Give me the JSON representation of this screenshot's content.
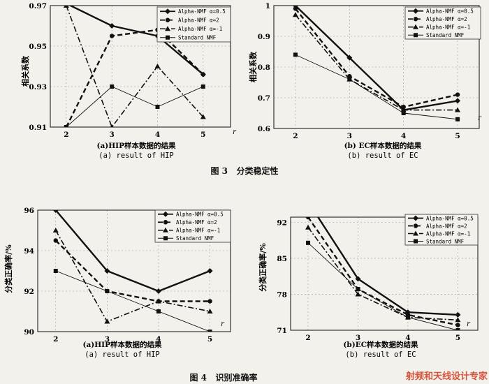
{
  "fig3_caption": "图 3   分类稳定性",
  "fig4_caption": "图 4   识别准确率",
  "watermark": {
    "brand": "射频和天线设计专家"
  },
  "chart_data": [
    {
      "id": "fig3a",
      "type": "line",
      "caption_cn": "(a)HIP样本数据的结果",
      "caption_en": "(a)  result of HIP",
      "ylabel": "相关系数",
      "xlabel": "r",
      "x": [
        2,
        3,
        4,
        5
      ],
      "xlim": [
        1.65,
        5.6
      ],
      "ylim": [
        0.91,
        0.97
      ],
      "yticks": [
        0.91,
        0.93,
        0.95,
        0.97
      ],
      "xticks": [
        2,
        3,
        4,
        5
      ],
      "legend_position": "top-right",
      "series": [
        {
          "name": "Alpha-NMF α=0.5",
          "values": [
            0.971,
            0.96,
            0.955,
            0.936
          ],
          "style": "solid-thick",
          "marker": "diamond"
        },
        {
          "name": "Alpha-NMF α=2",
          "values": [
            0.91,
            0.955,
            0.958,
            0.936
          ],
          "style": "dashed-thick",
          "marker": "circle"
        },
        {
          "name": "Alpha-NMF α=-1",
          "values": [
            0.97,
            0.91,
            0.94,
            0.915
          ],
          "style": "dashdot",
          "marker": "triangle"
        },
        {
          "name": "Standard NMF",
          "values": [
            0.91,
            0.93,
            0.92,
            0.93
          ],
          "style": "solid-thin",
          "marker": "square"
        }
      ]
    },
    {
      "id": "fig3b",
      "type": "line",
      "caption_cn": "(b) EC样本数据的结果",
      "caption_en": "(b)  result of EC",
      "ylabel": "相关系数",
      "xlabel": "r",
      "x": [
        2,
        3,
        4,
        5
      ],
      "xlim": [
        1.6,
        5.4
      ],
      "ylim": [
        0.6,
        1.0
      ],
      "yticks": [
        0.6,
        0.7,
        0.8,
        0.9,
        1
      ],
      "xticks": [
        2,
        3,
        4,
        5
      ],
      "legend_position": "top-right",
      "series": [
        {
          "name": "Alpha-NMF α=0.5",
          "values": [
            1.0,
            0.83,
            0.66,
            0.69
          ],
          "style": "solid-thick",
          "marker": "diamond"
        },
        {
          "name": "Alpha-NMF α=2",
          "values": [
            0.99,
            0.77,
            0.67,
            0.71
          ],
          "style": "dashed-thick",
          "marker": "circle"
        },
        {
          "name": "Alpha-NMF α=-1",
          "values": [
            0.97,
            0.76,
            0.66,
            0.66
          ],
          "style": "dashdot",
          "marker": "triangle"
        },
        {
          "name": "Standard NMF",
          "values": [
            0.84,
            0.76,
            0.65,
            0.63
          ],
          "style": "solid-thin",
          "marker": "square"
        }
      ]
    },
    {
      "id": "fig4a",
      "type": "line",
      "caption_cn": "(a)HIP样本数据的结果",
      "caption_en": "(a)  result of HIP",
      "ylabel": "分类正确率/%",
      "xlabel": "r",
      "x": [
        2,
        3,
        4,
        5
      ],
      "xlim": [
        1.65,
        5.4
      ],
      "ylim": [
        90,
        96
      ],
      "yticks": [
        90,
        92,
        94,
        96
      ],
      "xticks": [
        2,
        3,
        4,
        5
      ],
      "legend_position": "top-right",
      "series": [
        {
          "name": "Alpha-NMF α=0.5",
          "values": [
            96,
            93,
            92,
            93
          ],
          "style": "solid-thick",
          "marker": "diamond"
        },
        {
          "name": "Alpha-NMF α=2",
          "values": [
            94.5,
            92,
            91.5,
            91.5
          ],
          "style": "dashed-thick",
          "marker": "circle"
        },
        {
          "name": "Alpha-NMF α=-1",
          "values": [
            95,
            90.5,
            91.5,
            91
          ],
          "style": "dashdot",
          "marker": "triangle"
        },
        {
          "name": "Standard NMF",
          "values": [
            93,
            92,
            91,
            90
          ],
          "style": "solid-thin",
          "marker": "square"
        }
      ]
    },
    {
      "id": "fig4b",
      "type": "line",
      "caption_cn": "(b)EC样本数据的结果",
      "caption_en": "(b)  result of EC",
      "ylabel": "分类正确率/%",
      "xlabel": "r",
      "x": [
        2,
        3,
        4,
        5
      ],
      "xlim": [
        1.65,
        5.4
      ],
      "ylim": [
        71,
        93
      ],
      "yticks": [
        71,
        78,
        85,
        92
      ],
      "xticks": [
        2,
        3,
        4,
        5
      ],
      "legend_position": "top-right",
      "series": [
        {
          "name": "Alpha-NMF α=0.5",
          "values": [
            96,
            81,
            74.5,
            74
          ],
          "style": "solid-thick",
          "marker": "diamond"
        },
        {
          "name": "Alpha-NMF α=2",
          "values": [
            93,
            79,
            74,
            72
          ],
          "style": "dashed-thick",
          "marker": "circle"
        },
        {
          "name": "Alpha-NMF α=-1",
          "values": [
            91,
            78,
            73.5,
            73
          ],
          "style": "dashdot",
          "marker": "triangle"
        },
        {
          "name": "Standard NMF",
          "values": [
            88,
            79,
            73.5,
            71
          ],
          "style": "solid-thin",
          "marker": "square"
        }
      ]
    }
  ]
}
